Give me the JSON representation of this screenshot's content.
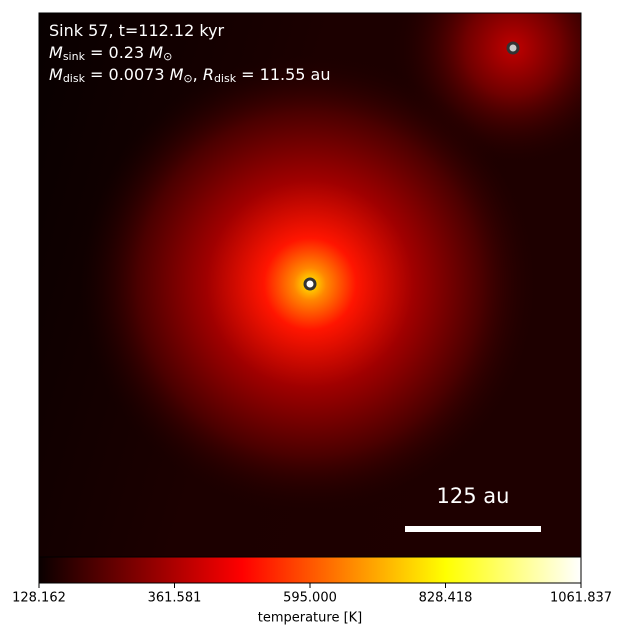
{
  "chart_data": {
    "type": "heatmap",
    "annotation_lines": [
      [
        {
          "text": "Sink 57, t=112.12 kyr"
        }
      ],
      [
        {
          "text": "M",
          "style": "italic"
        },
        {
          "text": "sink",
          "style": "sub"
        },
        {
          "text": " = 0.23 "
        },
        {
          "text": "M",
          "style": "italic"
        },
        {
          "text": "⊙",
          "style": "sub"
        }
      ],
      [
        {
          "text": "M",
          "style": "italic"
        },
        {
          "text": "disk",
          "style": "sub"
        },
        {
          "text": " = 0.0073 "
        },
        {
          "text": "M",
          "style": "italic"
        },
        {
          "text": "⊙",
          "style": "sub"
        },
        {
          "text": ", "
        },
        {
          "text": "R",
          "style": "italic"
        },
        {
          "text": "disk",
          "style": "sub"
        },
        {
          "text": " = 11.55 au"
        }
      ]
    ],
    "scale_bar_label": "125 au",
    "colorbar": {
      "label": "temperature [K]",
      "colormap": "hot",
      "lim": [
        128.162,
        1061.837
      ],
      "ticks": [
        128.162,
        361.581,
        {
          "value": 595,
          "label": "595.000"
        },
        828.418,
        1061.837
      ]
    }
  }
}
